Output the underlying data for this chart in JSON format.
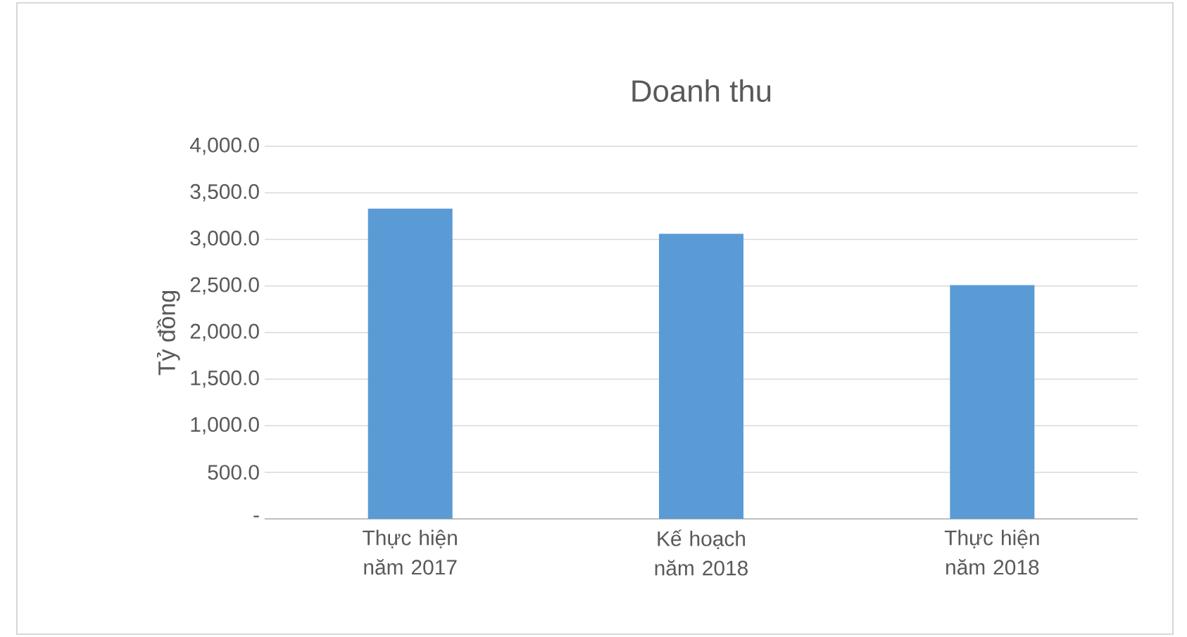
{
  "chart_data": {
    "type": "bar",
    "title": "Doanh thu",
    "ylabel": "Tỷ đồng",
    "categories": [
      "Thực hiện năm 2017",
      "Kế hoạch năm 2018",
      "Thực hiện năm 2018"
    ],
    "values": [
      3330,
      3060,
      2510
    ],
    "color": "#5b9bd5",
    "ylim": [
      0,
      4000
    ],
    "yticks": [
      {
        "value": 0,
        "label": "-"
      },
      {
        "value": 500,
        "label": "500.0"
      },
      {
        "value": 1000,
        "label": "1,000.0"
      },
      {
        "value": 1500,
        "label": "1,500.0"
      },
      {
        "value": 2000,
        "label": "2,000.0"
      },
      {
        "value": 2500,
        "label": "2,500.0"
      },
      {
        "value": 3000,
        "label": "3,000.0"
      },
      {
        "value": 3500,
        "label": "3,500.0"
      },
      {
        "value": 4000,
        "label": "4,000.0"
      }
    ],
    "grid": "y"
  }
}
